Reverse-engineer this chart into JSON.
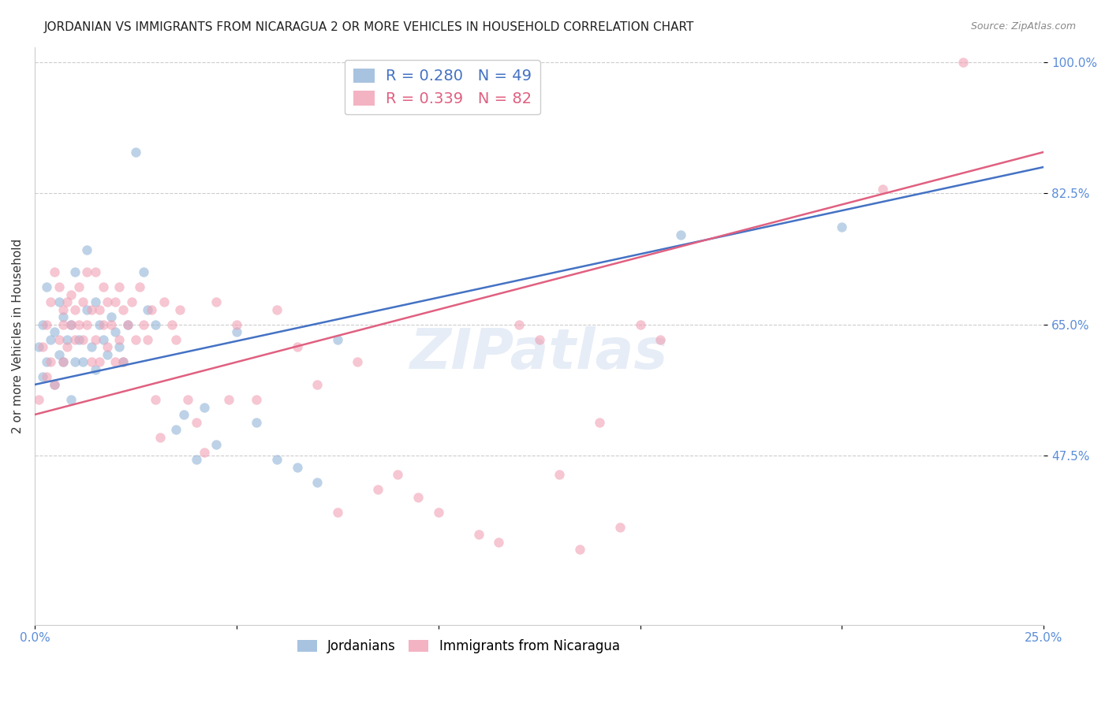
{
  "title": "JORDANIAN VS IMMIGRANTS FROM NICARAGUA 2 OR MORE VEHICLES IN HOUSEHOLD CORRELATION CHART",
  "source": "Source: ZipAtlas.com",
  "ylabel": "2 or more Vehicles in Household",
  "xlabel": "",
  "xlim": [
    0.0,
    0.25
  ],
  "ylim": [
    0.25,
    1.02
  ],
  "yticks": [
    0.475,
    0.65,
    0.825,
    1.0
  ],
  "ytick_labels": [
    "47.5%",
    "65.0%",
    "82.5%",
    "100.0%"
  ],
  "xticks": [
    0.0,
    0.05,
    0.1,
    0.15,
    0.2,
    0.25
  ],
  "xtick_labels": [
    "0.0%",
    "",
    "",
    "",
    "",
    "25.0%"
  ],
  "blue_color": "#92b4d8",
  "pink_color": "#f0a0b4",
  "blue_line_color": "#4472c4",
  "pink_line_color": "#e06080",
  "watermark": "ZIPatlas",
  "blue_points": [
    [
      0.001,
      0.62
    ],
    [
      0.002,
      0.58
    ],
    [
      0.002,
      0.65
    ],
    [
      0.003,
      0.6
    ],
    [
      0.003,
      0.7
    ],
    [
      0.004,
      0.63
    ],
    [
      0.005,
      0.57
    ],
    [
      0.005,
      0.64
    ],
    [
      0.006,
      0.61
    ],
    [
      0.006,
      0.68
    ],
    [
      0.007,
      0.6
    ],
    [
      0.007,
      0.66
    ],
    [
      0.008,
      0.63
    ],
    [
      0.009,
      0.55
    ],
    [
      0.009,
      0.65
    ],
    [
      0.01,
      0.6
    ],
    [
      0.01,
      0.72
    ],
    [
      0.011,
      0.63
    ],
    [
      0.012,
      0.6
    ],
    [
      0.013,
      0.67
    ],
    [
      0.013,
      0.75
    ],
    [
      0.014,
      0.62
    ],
    [
      0.015,
      0.59
    ],
    [
      0.015,
      0.68
    ],
    [
      0.016,
      0.65
    ],
    [
      0.017,
      0.63
    ],
    [
      0.018,
      0.61
    ],
    [
      0.019,
      0.66
    ],
    [
      0.02,
      0.64
    ],
    [
      0.021,
      0.62
    ],
    [
      0.022,
      0.6
    ],
    [
      0.023,
      0.65
    ],
    [
      0.025,
      0.88
    ],
    [
      0.027,
      0.72
    ],
    [
      0.028,
      0.67
    ],
    [
      0.03,
      0.65
    ],
    [
      0.035,
      0.51
    ],
    [
      0.037,
      0.53
    ],
    [
      0.04,
      0.47
    ],
    [
      0.042,
      0.54
    ],
    [
      0.045,
      0.49
    ],
    [
      0.05,
      0.64
    ],
    [
      0.055,
      0.52
    ],
    [
      0.06,
      0.47
    ],
    [
      0.065,
      0.46
    ],
    [
      0.07,
      0.44
    ],
    [
      0.075,
      0.63
    ],
    [
      0.16,
      0.77
    ],
    [
      0.2,
      0.78
    ]
  ],
  "pink_points": [
    [
      0.001,
      0.55
    ],
    [
      0.002,
      0.62
    ],
    [
      0.003,
      0.58
    ],
    [
      0.003,
      0.65
    ],
    [
      0.004,
      0.6
    ],
    [
      0.004,
      0.68
    ],
    [
      0.005,
      0.57
    ],
    [
      0.005,
      0.72
    ],
    [
      0.006,
      0.63
    ],
    [
      0.006,
      0.7
    ],
    [
      0.007,
      0.6
    ],
    [
      0.007,
      0.65
    ],
    [
      0.007,
      0.67
    ],
    [
      0.008,
      0.62
    ],
    [
      0.008,
      0.68
    ],
    [
      0.009,
      0.65
    ],
    [
      0.009,
      0.69
    ],
    [
      0.01,
      0.63
    ],
    [
      0.01,
      0.67
    ],
    [
      0.011,
      0.65
    ],
    [
      0.011,
      0.7
    ],
    [
      0.012,
      0.63
    ],
    [
      0.012,
      0.68
    ],
    [
      0.013,
      0.65
    ],
    [
      0.013,
      0.72
    ],
    [
      0.014,
      0.6
    ],
    [
      0.014,
      0.67
    ],
    [
      0.015,
      0.63
    ],
    [
      0.015,
      0.72
    ],
    [
      0.016,
      0.6
    ],
    [
      0.016,
      0.67
    ],
    [
      0.017,
      0.65
    ],
    [
      0.017,
      0.7
    ],
    [
      0.018,
      0.62
    ],
    [
      0.018,
      0.68
    ],
    [
      0.019,
      0.65
    ],
    [
      0.02,
      0.6
    ],
    [
      0.02,
      0.68
    ],
    [
      0.021,
      0.63
    ],
    [
      0.021,
      0.7
    ],
    [
      0.022,
      0.6
    ],
    [
      0.022,
      0.67
    ],
    [
      0.023,
      0.65
    ],
    [
      0.024,
      0.68
    ],
    [
      0.025,
      0.63
    ],
    [
      0.026,
      0.7
    ],
    [
      0.027,
      0.65
    ],
    [
      0.028,
      0.63
    ],
    [
      0.029,
      0.67
    ],
    [
      0.03,
      0.55
    ],
    [
      0.031,
      0.5
    ],
    [
      0.032,
      0.68
    ],
    [
      0.034,
      0.65
    ],
    [
      0.035,
      0.63
    ],
    [
      0.036,
      0.67
    ],
    [
      0.038,
      0.55
    ],
    [
      0.04,
      0.52
    ],
    [
      0.042,
      0.48
    ],
    [
      0.045,
      0.68
    ],
    [
      0.048,
      0.55
    ],
    [
      0.05,
      0.65
    ],
    [
      0.055,
      0.55
    ],
    [
      0.06,
      0.67
    ],
    [
      0.065,
      0.62
    ],
    [
      0.07,
      0.57
    ],
    [
      0.075,
      0.4
    ],
    [
      0.08,
      0.6
    ],
    [
      0.085,
      0.43
    ],
    [
      0.09,
      0.45
    ],
    [
      0.095,
      0.42
    ],
    [
      0.1,
      0.4
    ],
    [
      0.11,
      0.37
    ],
    [
      0.115,
      0.36
    ],
    [
      0.12,
      0.65
    ],
    [
      0.125,
      0.63
    ],
    [
      0.13,
      0.45
    ],
    [
      0.135,
      0.35
    ],
    [
      0.14,
      0.52
    ],
    [
      0.145,
      0.38
    ],
    [
      0.15,
      0.65
    ],
    [
      0.155,
      0.63
    ],
    [
      0.21,
      0.83
    ],
    [
      0.23,
      1.0
    ]
  ],
  "blue_sizes_scale": 80,
  "pink_sizes_scale": 80,
  "background_color": "#ffffff",
  "grid_color": "#cccccc",
  "title_fontsize": 11,
  "axis_label_fontsize": 11,
  "tick_label_color": "#5b8dd9",
  "tick_fontsize": 11
}
